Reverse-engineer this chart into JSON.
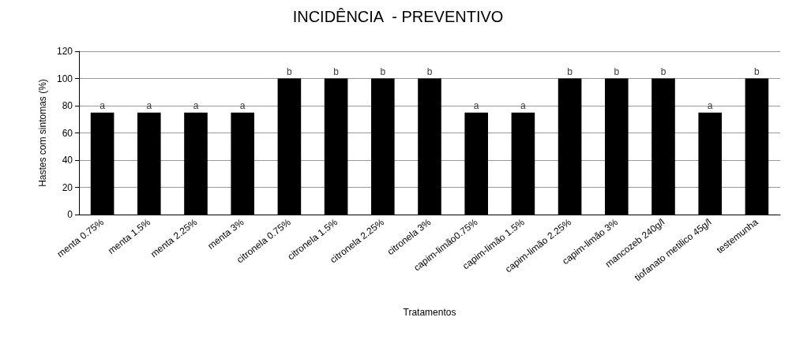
{
  "chart_data": {
    "type": "bar",
    "title": "INCIDÊNCIA  - PREVENTIVO",
    "xlabel": "Tratamentos",
    "ylabel": "Hastes com sintomas (%)",
    "categories": [
      "menta 0.75%",
      "menta 1.5%",
      "menta 2.25%",
      "menta 3%",
      "citronela 0.75%",
      "citronela 1.5%",
      "citronela 2.25%",
      "citronela 3%",
      "capim-limão0.75%",
      "capim-limão 1.5%",
      "capim-limão 2.25%",
      "capim-limão 3%",
      "mancozeb 240g/l",
      "tiofanato metilico 45g/l",
      "testemunha"
    ],
    "values": [
      75,
      75,
      75,
      75,
      100,
      100,
      100,
      100,
      75,
      75,
      100,
      100,
      100,
      75,
      100
    ],
    "color": "#000000",
    "ylim": [
      0,
      120
    ],
    "yticks": [
      0,
      20,
      40,
      60,
      80,
      100,
      120
    ],
    "grid": "y",
    "annotations": [
      {
        "text": "a",
        "x": "menta 0.75%",
        "y": 75
      },
      {
        "text": "a",
        "x": "menta 1.5%",
        "y": 75
      },
      {
        "text": "a",
        "x": "menta 2.25%",
        "y": 75
      },
      {
        "text": "a",
        "x": "menta 3%",
        "y": 75
      },
      {
        "text": "b",
        "x": "citronela 0.75%",
        "y": 100
      },
      {
        "text": "b",
        "x": "citronela 1.5%",
        "y": 100
      },
      {
        "text": "b",
        "x": "citronela 2.25%",
        "y": 100
      },
      {
        "text": "b",
        "x": "citronela 3%",
        "y": 100
      },
      {
        "text": "a",
        "x": "capim-limão0.75%",
        "y": 75
      },
      {
        "text": "a",
        "x": "capim-limão 1.5%",
        "y": 75
      },
      {
        "text": "b",
        "x": "capim-limão 2.25%",
        "y": 100
      },
      {
        "text": "b",
        "x": "capim-limão 3%",
        "y": 100
      },
      {
        "text": "b",
        "x": "mancozeb 240g/l",
        "y": 100
      },
      {
        "text": "a",
        "x": "tiofanato metilico 45g/l",
        "y": 75
      },
      {
        "text": "b",
        "x": "testemunha",
        "y": 100
      }
    ]
  }
}
